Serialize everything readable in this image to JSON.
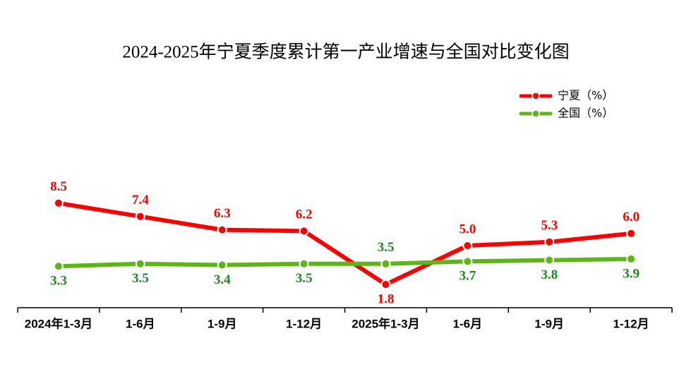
{
  "chart_data": {
    "type": "line",
    "title": "2024-2025年宁夏季度累计第一产业增速与全国对比变化图",
    "categories": [
      "2024年1-3月",
      "1-6月",
      "1-9月",
      "1-12月",
      "2025年1-3月",
      "1-6月",
      "1-9月",
      "1-12月"
    ],
    "series": [
      {
        "name": "宁夏（%）",
        "color": "#ff0000",
        "values": [
          8.5,
          7.4,
          6.3,
          6.2,
          1.8,
          5.0,
          5.3,
          6.0
        ],
        "value_labels": [
          "8.5",
          "7.4",
          "6.3",
          "6.2",
          "1.8",
          "5.0",
          "5.3",
          "6.0"
        ]
      },
      {
        "name": "全国（%）",
        "color": "#5cb615",
        "label_color": "#1a8a1a",
        "values": [
          3.3,
          3.5,
          3.4,
          3.5,
          3.5,
          3.7,
          3.8,
          3.9
        ],
        "value_labels": [
          "3.3",
          "3.5",
          "3.4",
          "3.5",
          "3.5",
          "3.7",
          "3.8",
          "3.9"
        ]
      }
    ],
    "ylim": [
      0,
      10
    ],
    "legend": "top-right"
  }
}
